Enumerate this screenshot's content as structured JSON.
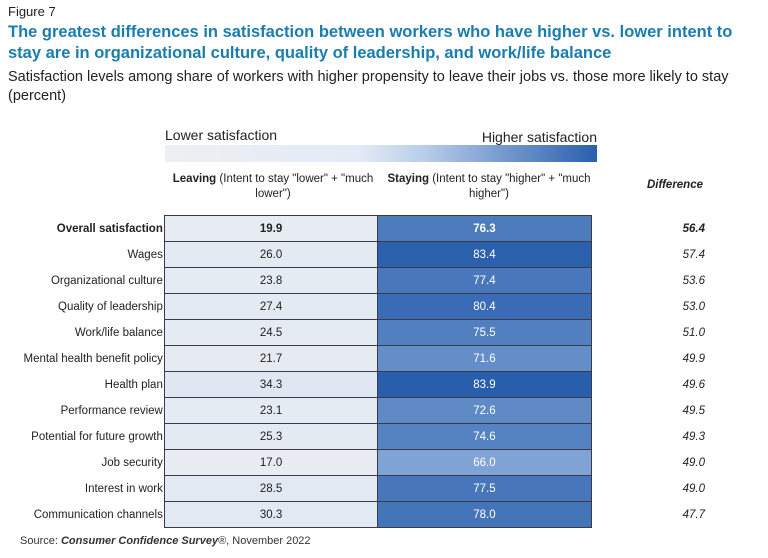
{
  "figure_label": "Figure 7",
  "title": "The greatest differences in satisfaction between workers who have higher vs. lower intent to stay are in organizational culture, quality of leadership, and work/life balance",
  "subtitle": "Satisfaction levels among share of workers with higher propensity to leave their jobs vs. those more likely to stay (percent)",
  "scale": {
    "low_label": "Lower satisfaction",
    "high_label": "Higher satisfaction",
    "low_color": "#eeeff2",
    "high_color": "#2a5fad"
  },
  "columns": {
    "leaving_bold": "Leaving",
    "leaving_rest": " (Intent to stay \"lower\" + \"much lower\")",
    "staying_bold": "Staying",
    "staying_rest": " (Intent to stay \"higher\" + \"much higher\")",
    "difference": "Difference"
  },
  "chart_data": {
    "type": "heatmap",
    "title": "The greatest differences in satisfaction between workers who have higher vs. lower intent to stay are in organizational culture, quality of leadership, and work/life balance",
    "categories": [
      "Overall satisfaction",
      "Wages",
      "Organizational culture",
      "Quality of leadership",
      "Work/life balance",
      "Mental health benefit policy",
      "Health plan",
      "Performance review",
      "Potential for future growth",
      "Job security",
      "Interest in work",
      "Communication channels"
    ],
    "series": [
      {
        "name": "Leaving",
        "values": [
          19.9,
          26.0,
          23.8,
          27.4,
          24.5,
          21.7,
          34.3,
          23.1,
          25.3,
          17.0,
          28.5,
          30.3
        ]
      },
      {
        "name": "Staying",
        "values": [
          76.3,
          83.4,
          77.4,
          80.4,
          75.5,
          71.6,
          83.9,
          72.6,
          74.6,
          66.0,
          77.5,
          78.0
        ]
      },
      {
        "name": "Difference",
        "values": [
          56.4,
          57.4,
          53.6,
          53.0,
          51.0,
          49.9,
          49.6,
          49.5,
          49.3,
          49.0,
          49.0,
          47.7
        ]
      }
    ]
  },
  "source": {
    "prefix": "Source: ",
    "name": "Consumer Confidence Survey",
    "suffix": "®, November 2022"
  }
}
